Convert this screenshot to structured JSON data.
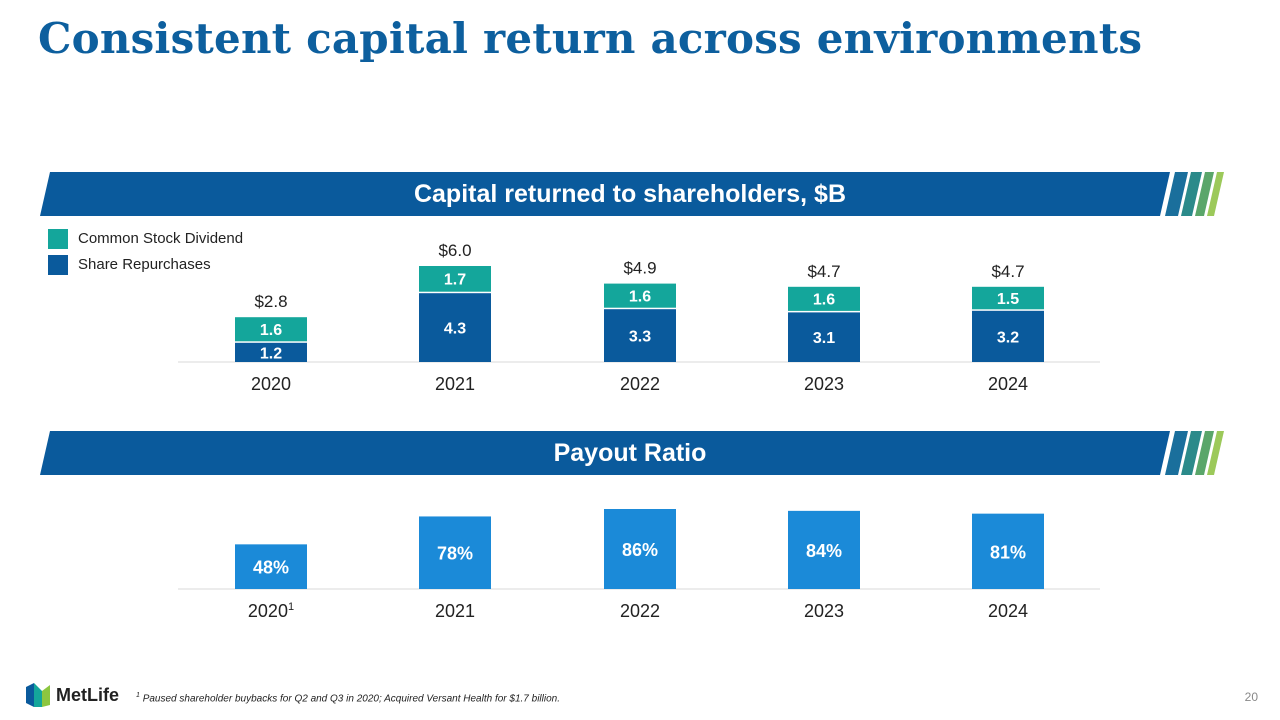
{
  "title": "Consistent capital return across environments",
  "colors": {
    "title": "#0d5f9e",
    "banner": "#0a5a9c",
    "dividend": "#14a69b",
    "repurchase": "#0a5a9c",
    "payout": "#1b8ad8"
  },
  "capital_section": {
    "banner": "Capital returned to shareholders, $B",
    "legend": [
      "Common Stock Dividend",
      "Share Repurchases"
    ]
  },
  "payout_section": {
    "banner": "Payout Ratio"
  },
  "footnote": {
    "marker": "1",
    "text": "Paused shareholder buybacks for Q2 and Q3 in 2020; Acquired Versant Health for $1.7 billion."
  },
  "logo": {
    "text": "MetLife"
  },
  "page_number": "20",
  "chart_data": [
    {
      "type": "bar",
      "stacked": true,
      "title": "Capital returned to shareholders, $B",
      "categories": [
        "2020",
        "2021",
        "2022",
        "2023",
        "2024"
      ],
      "series": [
        {
          "name": "Share Repurchases",
          "values": [
            1.2,
            4.3,
            3.3,
            3.1,
            3.2
          ],
          "labels": [
            "1.2",
            "4.3",
            "3.3",
            "3.1",
            "3.2"
          ]
        },
        {
          "name": "Common Stock Dividend",
          "values": [
            1.6,
            1.7,
            1.6,
            1.6,
            1.5
          ],
          "labels": [
            "1.6",
            "1.7",
            "1.6",
            "1.6",
            "1.5"
          ]
        }
      ],
      "totals": [
        2.8,
        6.0,
        4.9,
        4.7,
        4.7
      ],
      "total_labels": [
        "$2.8",
        "$6.0",
        "$4.9",
        "$4.7",
        "$4.7"
      ],
      "ylim": [
        0,
        6.0
      ],
      "grid": false,
      "legend": "top-left"
    },
    {
      "type": "bar",
      "title": "Payout Ratio",
      "categories": [
        "2020",
        "2021",
        "2022",
        "2023",
        "2024"
      ],
      "category_superscripts": [
        "1",
        "",
        "",
        "",
        ""
      ],
      "values": [
        48,
        78,
        86,
        84,
        81
      ],
      "value_labels": [
        "48%",
        "78%",
        "86%",
        "84%",
        "81%"
      ],
      "ylim": [
        0,
        86
      ],
      "grid": false
    }
  ]
}
